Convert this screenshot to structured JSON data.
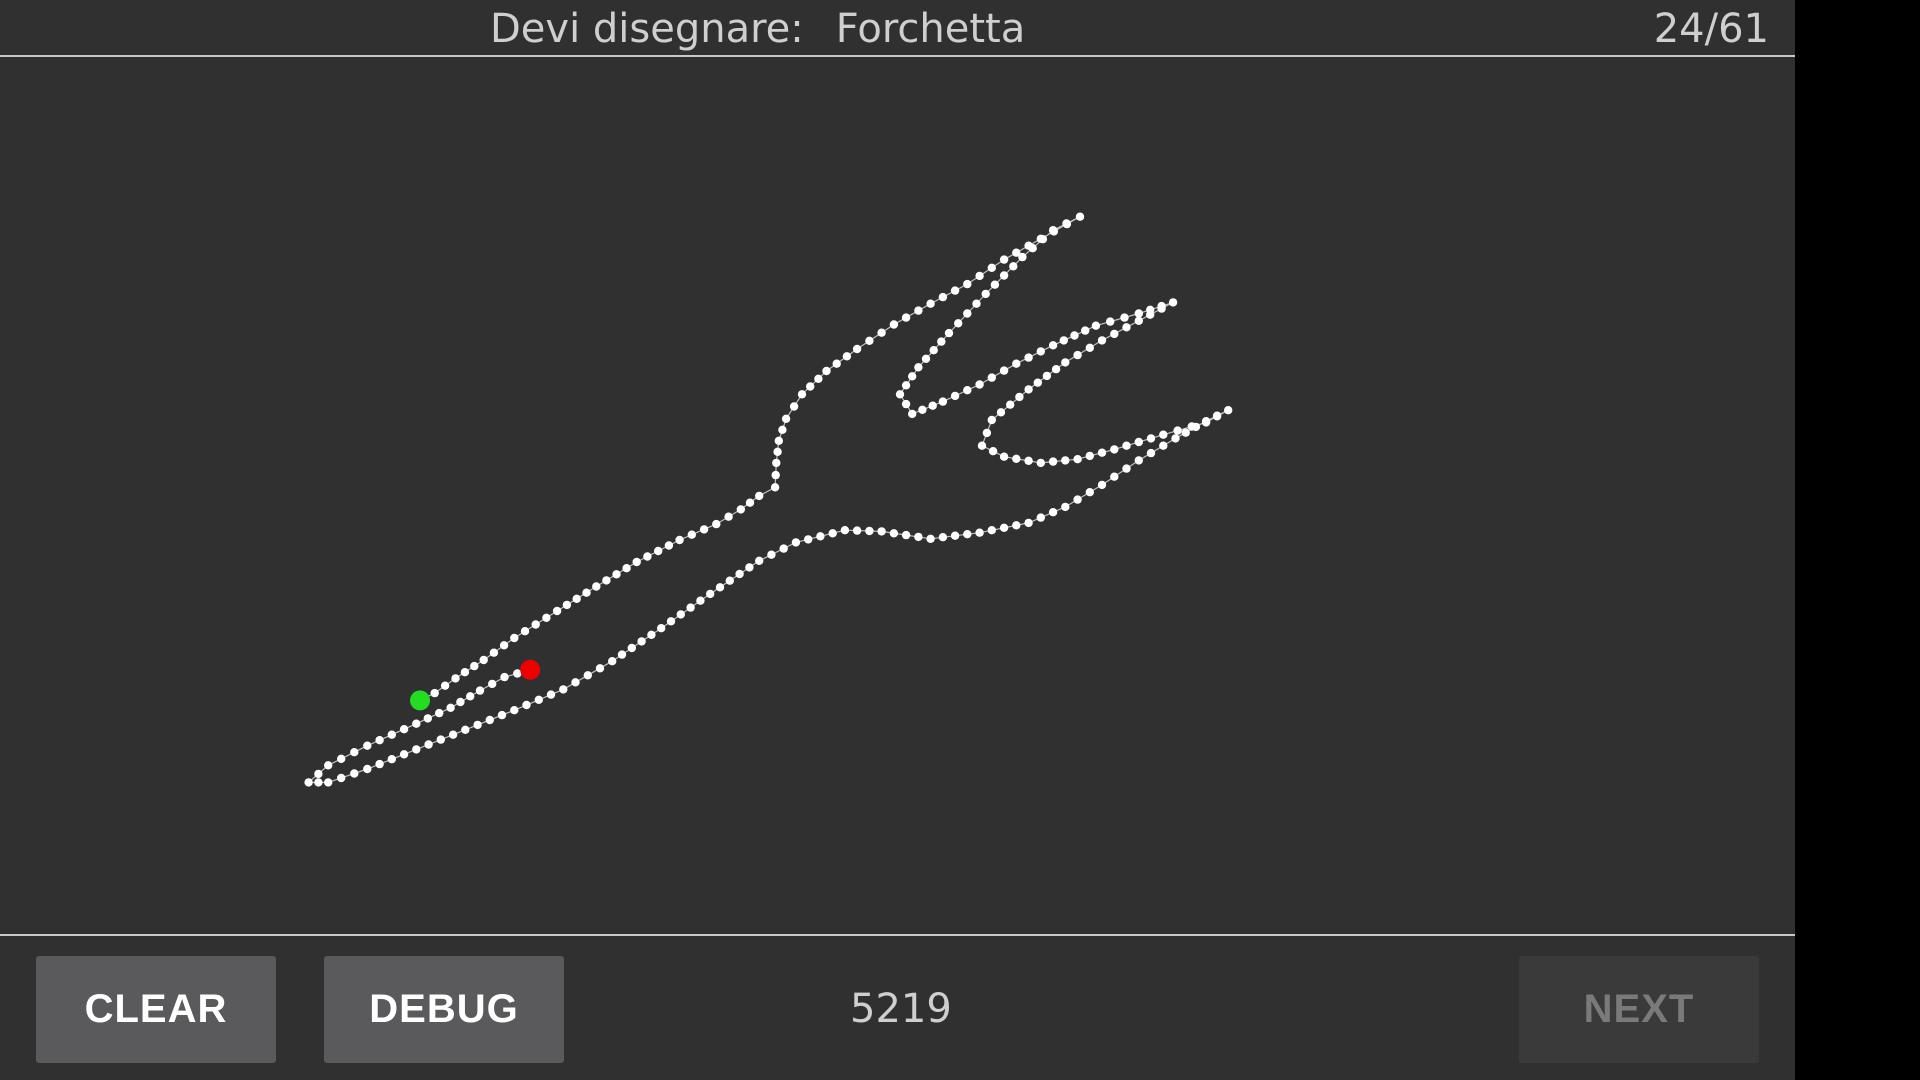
{
  "header": {
    "prompt_label": "Devi disegnare:",
    "prompt_word": "Forchetta",
    "progress": "24/61"
  },
  "footer": {
    "clear_label": "CLEAR",
    "debug_label": "DEBUG",
    "counter": "5219",
    "next_label": "NEXT",
    "next_enabled": false
  },
  "colors": {
    "background": "#303030",
    "stroke": "#ffffff",
    "start_marker": "#22dd22",
    "end_marker": "#ee0000"
  },
  "icons": [
    "stroke-start-marker",
    "stroke-end-marker"
  ]
}
